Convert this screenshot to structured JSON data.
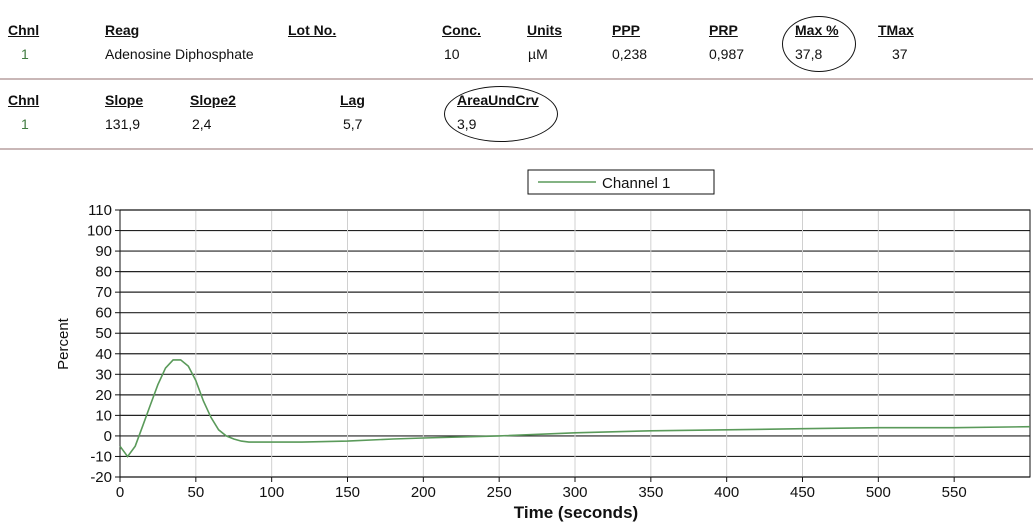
{
  "table1": {
    "headers": [
      "Chnl",
      "Reag",
      "Lot No.",
      "Conc.",
      "Units",
      "PPP",
      "PRP",
      "Max %",
      "TMax"
    ],
    "values": [
      "1",
      "Adenosine Diphosphate",
      "",
      "10",
      "µM",
      "0,238",
      "0,987",
      "37,8",
      "37"
    ]
  },
  "table2": {
    "headers": [
      "Chnl",
      "Slope",
      "Slope2",
      "Lag",
      "AreaUndCrv"
    ],
    "values": [
      "1",
      "131,9",
      "2,4",
      "5,7",
      "3,9"
    ]
  },
  "colors": {
    "line": "#5a9a5a",
    "grid": "#222222",
    "rule": "#c9b7b7"
  },
  "chart_data": {
    "type": "line",
    "title": "",
    "xlabel": "Time (seconds)",
    "ylabel": "Percent",
    "xlim": [
      0,
      600
    ],
    "ylim": [
      -20,
      110
    ],
    "xticks": [
      0,
      50,
      100,
      150,
      200,
      250,
      300,
      350,
      400,
      450,
      500,
      550
    ],
    "yticks": [
      110,
      100,
      90,
      80,
      70,
      60,
      50,
      40,
      30,
      20,
      10,
      0,
      -10,
      -20
    ],
    "legend": {
      "position": "top-center",
      "entries": [
        "Channel 1"
      ]
    },
    "grid": true,
    "series": [
      {
        "name": "Channel 1",
        "x": [
          0,
          5,
          10,
          15,
          20,
          25,
          30,
          35,
          40,
          45,
          50,
          55,
          60,
          65,
          70,
          75,
          80,
          85,
          90,
          100,
          120,
          150,
          180,
          200,
          250,
          300,
          350,
          400,
          450,
          500,
          550,
          600
        ],
        "y": [
          -5,
          -10,
          -5,
          5,
          15,
          25,
          33,
          37,
          37,
          34,
          27,
          17,
          9,
          3,
          0,
          -1.5,
          -2.5,
          -3,
          -3,
          -3,
          -3,
          -2.5,
          -1.5,
          -1,
          0,
          1.5,
          2.5,
          3,
          3.5,
          4,
          4,
          4.5
        ]
      }
    ]
  }
}
